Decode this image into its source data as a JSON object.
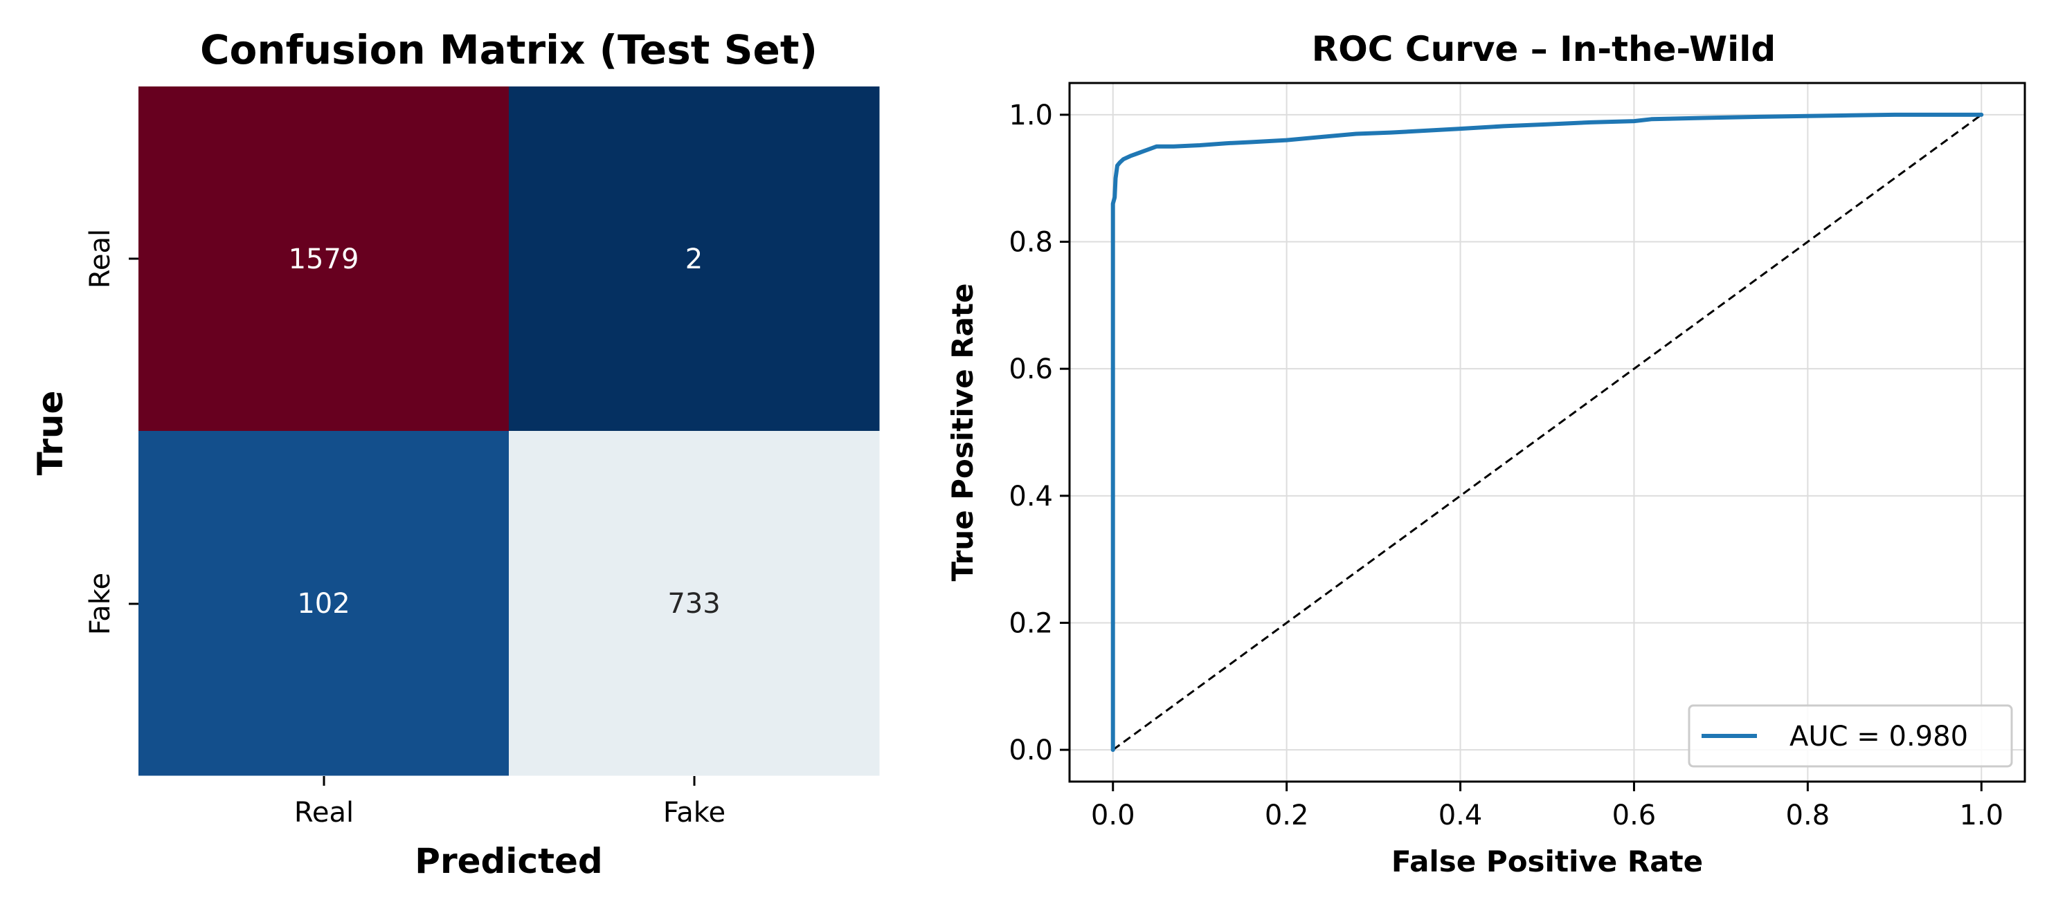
{
  "chart_data": [
    {
      "type": "heatmap",
      "title": "Confusion Matrix (Test Set)",
      "xlabel": "Predicted",
      "ylabel": "True",
      "x_categories": [
        "Real",
        "Fake"
      ],
      "y_categories": [
        "Real",
        "Fake"
      ],
      "values": [
        [
          1579,
          2
        ],
        [
          102,
          733
        ]
      ],
      "colormap": "RdBu_r",
      "cell_colors": [
        [
          "#67001f",
          "#053061"
        ],
        [
          "#134f8c",
          "#e7eef2"
        ]
      ],
      "cell_text_colors": [
        [
          "#ffffff",
          "#ffffff"
        ],
        [
          "#ffffff",
          "#262626"
        ]
      ]
    },
    {
      "type": "line",
      "title": "ROC Curve – In-the-Wild",
      "xlabel": "False Positive Rate",
      "ylabel": "True Positive Rate",
      "xlim": [
        -0.05,
        1.05
      ],
      "ylim": [
        -0.05,
        1.05
      ],
      "xticks": [
        "0.0",
        "0.2",
        "0.4",
        "0.6",
        "0.8",
        "1.0"
      ],
      "yticks": [
        "0.0",
        "0.2",
        "0.4",
        "0.6",
        "0.8",
        "1.0"
      ],
      "grid": true,
      "legend_position": "lower-right",
      "series": [
        {
          "name": "AUC = 0.980",
          "color": "#1f77b4",
          "x": [
            0,
            0,
            0.002,
            0.003,
            0.005,
            0.008,
            0.012,
            0.02,
            0.03,
            0.04,
            0.05,
            0.07,
            0.1,
            0.13,
            0.16,
            0.2,
            0.24,
            0.28,
            0.32,
            0.36,
            0.4,
            0.45,
            0.5,
            0.55,
            0.6,
            0.62,
            0.68,
            0.75,
            0.8,
            0.85,
            0.9,
            0.95,
            1.0
          ],
          "y": [
            0,
            0.86,
            0.87,
            0.9,
            0.92,
            0.925,
            0.93,
            0.935,
            0.94,
            0.945,
            0.95,
            0.95,
            0.952,
            0.955,
            0.957,
            0.96,
            0.965,
            0.97,
            0.972,
            0.975,
            0.978,
            0.982,
            0.985,
            0.988,
            0.99,
            0.993,
            0.995,
            0.997,
            0.998,
            0.999,
            1.0,
            1.0,
            1.0
          ]
        }
      ],
      "reference_line": {
        "x": [
          0,
          1
        ],
        "y": [
          0,
          1
        ],
        "color": "#000000",
        "style": "dashed"
      }
    }
  ]
}
